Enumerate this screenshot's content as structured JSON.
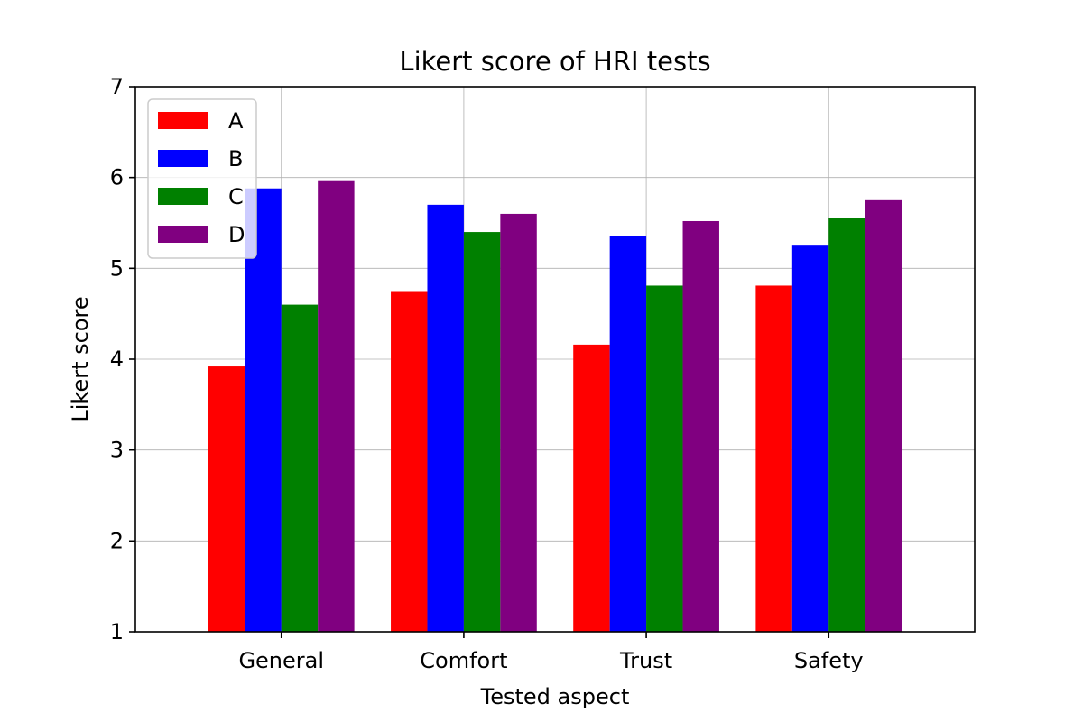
{
  "chart_data": {
    "type": "bar",
    "title": "Likert score of HRI tests",
    "xlabel": "Tested aspect",
    "ylabel": "Likert score",
    "categories": [
      "General",
      "Comfort",
      "Trust",
      "Safety"
    ],
    "ylim": [
      1,
      7
    ],
    "yticks": [
      "1",
      "2",
      "3",
      "4",
      "5",
      "6",
      "7"
    ],
    "grid": true,
    "legend_position": "top-left",
    "series": [
      {
        "name": "A",
        "color": "#ff0000",
        "values": [
          3.92,
          4.75,
          4.16,
          4.81
        ]
      },
      {
        "name": "B",
        "color": "#0000ff",
        "values": [
          5.88,
          5.7,
          5.36,
          5.25
        ]
      },
      {
        "name": "C",
        "color": "#008000",
        "values": [
          4.6,
          5.4,
          4.81,
          5.55
        ]
      },
      {
        "name": "D",
        "color": "#800080",
        "values": [
          5.96,
          5.6,
          5.52,
          5.75
        ]
      }
    ]
  }
}
